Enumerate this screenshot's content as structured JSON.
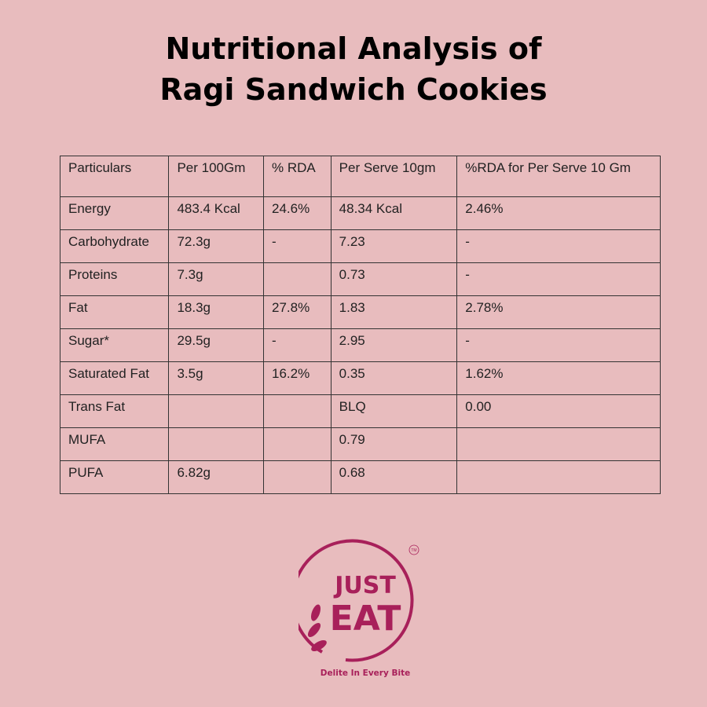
{
  "title": {
    "line1": "Nutritional Analysis of",
    "line2": "Ragi Sandwich Cookies"
  },
  "table": {
    "headers": [
      "Particulars",
      "Per 100Gm",
      "% RDA",
      "Per Serve 10gm",
      "%RDA  for Per Serve 10 Gm"
    ],
    "rows": [
      [
        "Energy",
        "483.4 Kcal",
        "24.6%",
        "48.34 Kcal",
        "2.46%"
      ],
      [
        "Carbohydrate",
        "72.3g",
        "-",
        "7.23",
        "-"
      ],
      [
        "Proteins",
        "7.3g",
        "",
        "0.73",
        "-"
      ],
      [
        "Fat",
        "18.3g",
        "27.8%",
        "1.83",
        "2.78%"
      ],
      [
        "Sugar*",
        "29.5g",
        "-",
        "2.95",
        "-"
      ],
      [
        "Saturated Fat",
        "3.5g",
        "16.2%",
        "0.35",
        "1.62%"
      ],
      [
        "Trans Fat",
        "",
        "",
        "BLQ",
        "0.00"
      ],
      [
        "MUFA",
        "",
        "",
        "0.79",
        ""
      ],
      [
        "PUFA",
        "6.82g",
        "",
        "0.68",
        ""
      ]
    ]
  },
  "logo": {
    "line1": "JUST",
    "line2": "EAT",
    "tm": "TM",
    "tagline": "Delite In Every Bite",
    "color": "#a8205a"
  }
}
